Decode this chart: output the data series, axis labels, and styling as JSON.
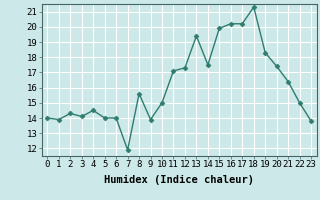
{
  "x": [
    0,
    1,
    2,
    3,
    4,
    5,
    6,
    7,
    8,
    9,
    10,
    11,
    12,
    13,
    14,
    15,
    16,
    17,
    18,
    19,
    20,
    21,
    22,
    23
  ],
  "y": [
    14.0,
    13.9,
    14.3,
    14.1,
    14.5,
    14.0,
    14.0,
    11.9,
    15.6,
    13.9,
    15.0,
    17.1,
    17.3,
    19.4,
    17.5,
    19.9,
    20.2,
    20.2,
    21.3,
    18.3,
    17.4,
    16.4,
    15.0,
    13.8
  ],
  "line_color": "#2e7d6e",
  "marker": "D",
  "markersize": 2.5,
  "linewidth": 1.0,
  "bg_color": "#cde8e8",
  "grid_color": "#ffffff",
  "xlabel": "Humidex (Indice chaleur)",
  "ylim": [
    11.5,
    21.5
  ],
  "xlim": [
    -0.5,
    23.5
  ],
  "yticks": [
    12,
    13,
    14,
    15,
    16,
    17,
    18,
    19,
    20,
    21
  ],
  "xticks": [
    0,
    1,
    2,
    3,
    4,
    5,
    6,
    7,
    8,
    9,
    10,
    11,
    12,
    13,
    14,
    15,
    16,
    17,
    18,
    19,
    20,
    21,
    22,
    23
  ],
  "tick_label_fontsize": 6.5,
  "xlabel_fontsize": 7.5
}
